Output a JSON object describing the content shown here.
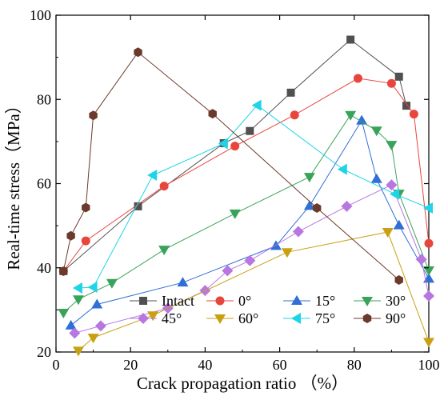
{
  "chart_data": {
    "type": "line",
    "xlabel": "Crack propagation ratio （%）",
    "ylabel": "Real-time stress（MPa）",
    "xlim": [
      0,
      100
    ],
    "ylim": [
      20,
      100
    ],
    "x_ticks": [
      "0",
      "20",
      "40",
      "60",
      "80",
      "100"
    ],
    "y_ticks": [
      "20",
      "40",
      "60",
      "80",
      "100"
    ],
    "grid": false,
    "legend_position": "bottom-right, inside",
    "series": [
      {
        "name": "Intact",
        "color": "#505050",
        "marker": "square",
        "points": [
          [
            2,
            39.2
          ],
          [
            22,
            54.6
          ],
          [
            45,
            69.6
          ],
          [
            52,
            72.5
          ],
          [
            63,
            81.6
          ],
          [
            79,
            94.2
          ],
          [
            92,
            85.4
          ],
          [
            94,
            78.5
          ]
        ]
      },
      {
        "name": "0°",
        "color": "#e8453c",
        "marker": "circle",
        "points": [
          [
            2,
            39.2
          ],
          [
            8,
            46.4
          ],
          [
            29,
            59.4
          ],
          [
            48,
            68.9
          ],
          [
            64,
            76.3
          ],
          [
            81,
            85.0
          ],
          [
            90,
            83.8
          ],
          [
            96,
            76.5
          ],
          [
            100,
            45.8
          ]
        ]
      },
      {
        "name": "15°",
        "color": "#2f6fd6",
        "marker": "triangle-up",
        "points": [
          [
            4,
            26.3
          ],
          [
            11,
            31.3
          ],
          [
            34,
            36.5
          ],
          [
            59,
            45.2
          ],
          [
            68,
            54.7
          ],
          [
            82,
            75.0
          ],
          [
            86,
            61.1
          ],
          [
            92,
            50.1
          ],
          [
            100,
            37.4
          ]
        ]
      },
      {
        "name": "30°",
        "color": "#3aa35a",
        "marker": "triangle-down",
        "points": [
          [
            2,
            29.3
          ],
          [
            6,
            32.5
          ],
          [
            15,
            36.4
          ],
          [
            29,
            44.3
          ],
          [
            48,
            52.9
          ],
          [
            68,
            61.6
          ],
          [
            79,
            76.3
          ],
          [
            86,
            72.6
          ],
          [
            90,
            69.2
          ],
          [
            92,
            57.6
          ],
          [
            100,
            39.4
          ]
        ]
      },
      {
        "name": "45°",
        "color": "#b877e0",
        "marker": "diamond",
        "points": [
          [
            5,
            24.5
          ],
          [
            12,
            26.2
          ],
          [
            30,
            30.4
          ],
          [
            40,
            34.6
          ],
          [
            46,
            39.3
          ],
          [
            52,
            41.7
          ],
          [
            65,
            48.6
          ],
          [
            78,
            54.6
          ],
          [
            90,
            59.7
          ],
          [
            98,
            42.0
          ],
          [
            100,
            33.3
          ]
        ]
      },
      {
        "name": "60°",
        "color": "#c8a012",
        "marker": "triangle-down",
        "points": [
          [
            6,
            20.3
          ],
          [
            10,
            23.4
          ],
          [
            26,
            28.7
          ],
          [
            62,
            43.7
          ],
          [
            89,
            48.5
          ],
          [
            100,
            22.4
          ]
        ]
      },
      {
        "name": "75°",
        "color": "#1fd4e6",
        "marker": "triangle-left",
        "points": [
          [
            6,
            35.2
          ],
          [
            10,
            35.4
          ],
          [
            26,
            62.0
          ],
          [
            45,
            69.5
          ],
          [
            54,
            78.6
          ],
          [
            77,
            63.4
          ],
          [
            91,
            57.5
          ],
          [
            100,
            54.2
          ]
        ]
      },
      {
        "name": "90°",
        "color": "#6b3a2c",
        "marker": "hexagon",
        "points": [
          [
            2,
            39.2
          ],
          [
            4,
            47.6
          ],
          [
            8,
            54.3
          ],
          [
            10,
            76.2
          ],
          [
            22,
            91.2
          ],
          [
            42,
            76.6
          ],
          [
            70,
            54.2
          ],
          [
            92,
            37.1
          ]
        ]
      }
    ]
  }
}
